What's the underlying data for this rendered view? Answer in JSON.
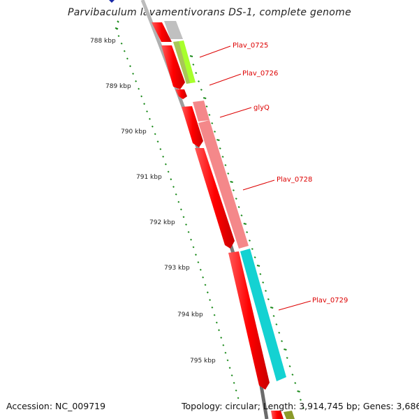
{
  "title": "Parvibaculum lavamentivorans DS-1, complete genome",
  "footer": {
    "accession": "Accession: NC_009719",
    "summary": "Topology: circular; Length: 3,914,745 bp; Genes: 3,686"
  },
  "ticks": [
    "788 kbp",
    "789 kbp",
    "790 kbp",
    "791 kbp",
    "792 kbp",
    "793 kbp",
    "794 kbp",
    "795 kbp"
  ],
  "genes": [
    {
      "name": "Plav_0725",
      "color": "#a8ff2c"
    },
    {
      "name": "Plav_0726",
      "color": "#ffffff"
    },
    {
      "name": "glyQ",
      "color": "#f4888a"
    },
    {
      "name": "Plav_0728",
      "color": "#f4888a"
    },
    {
      "name": "Plav_0729",
      "color": "#14d2d2"
    }
  ],
  "colors": {
    "cds": "#ff0000",
    "backbone": "#888888",
    "ticks": "#1a8a1a",
    "label": "#dd0000"
  }
}
